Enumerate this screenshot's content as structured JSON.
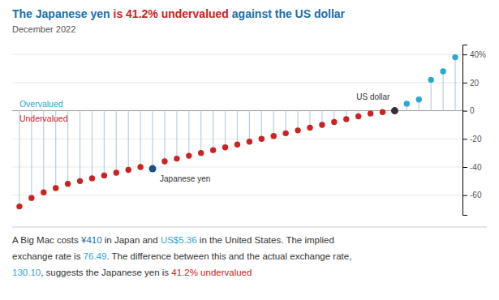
{
  "chart_data": {
    "type": "lollipop",
    "title_parts": [
      {
        "text": "The Japanese yen ",
        "color": "#1a6fa8"
      },
      {
        "text": "is 41.2% undervalued",
        "color": "#cc2222"
      },
      {
        "text": " against the US dollar",
        "color": "#1a6fa8"
      }
    ],
    "subtitle": "December 2022",
    "values": [
      -68,
      -62,
      -58,
      -55,
      -52,
      -50,
      -48,
      -46,
      -44,
      -42,
      -40,
      -41.2,
      -36,
      -34,
      -32,
      -30,
      -28,
      -26,
      -24,
      -22,
      -20,
      -18,
      -16,
      -14,
      -12,
      -10,
      -8,
      -6,
      -4,
      -2,
      -1,
      0,
      5,
      8,
      22,
      28,
      38
    ],
    "color": "#b8cfe0",
    "colors": [
      "#cc2222",
      "#cc2222",
      "#cc2222",
      "#cc2222",
      "#cc2222",
      "#cc2222",
      "#cc2222",
      "#cc2222",
      "#cc2222",
      "#cc2222",
      "#cc2222",
      "#1a4f8a",
      "#cc2222",
      "#cc2222",
      "#cc2222",
      "#cc2222",
      "#cc2222",
      "#cc2222",
      "#cc2222",
      "#cc2222",
      "#cc2222",
      "#cc2222",
      "#cc2222",
      "#cc2222",
      "#cc2222",
      "#cc2222",
      "#cc2222",
      "#cc2222",
      "#cc2222",
      "#cc2222",
      "#cc2222",
      "#333333",
      "#29a8d4",
      "#29a8d4",
      "#29a8d4",
      "#29a8d4",
      "#29a8d4"
    ],
    "zone_labels": [
      {
        "text": "Overvalued",
        "color": "#29a8d4"
      },
      {
        "text": "Undervalued",
        "color": "#cc2222"
      }
    ],
    "annotations": [
      {
        "text": "Japanese yen",
        "index": 11
      },
      {
        "text": "US dollar",
        "index": 31
      }
    ],
    "ylim": [
      -74,
      47
    ],
    "yticks": [
      -60,
      -40,
      -20,
      0,
      20,
      {
        "value": 40,
        "label": "40%"
      }
    ],
    "grid": true,
    "tick_labels": "y",
    "notes": [
      [
        {
          "text": "A Big Mac costs ",
          "color": "#333333"
        },
        {
          "text": "¥410",
          "color": "#1a6fa8"
        },
        {
          "text": " in Japan and ",
          "color": "#333333"
        },
        {
          "text": "US$5.36",
          "color": "#29a8d4"
        },
        {
          "text": " in the United States. The implied",
          "color": "#333333"
        }
      ],
      [
        {
          "text": "exchange rate is ",
          "color": "#333333"
        },
        {
          "text": "76.49",
          "color": "#29a8d4"
        },
        {
          "text": ". The difference between this and the actual exchange rate,",
          "color": "#333333"
        }
      ],
      [
        {
          "text": "130.10",
          "color": "#29a8d4"
        },
        {
          "text": ", suggests the Japanese yen is ",
          "color": "#333333"
        },
        {
          "text": "41.2% undervalued",
          "color": "#cc2222"
        }
      ]
    ]
  }
}
